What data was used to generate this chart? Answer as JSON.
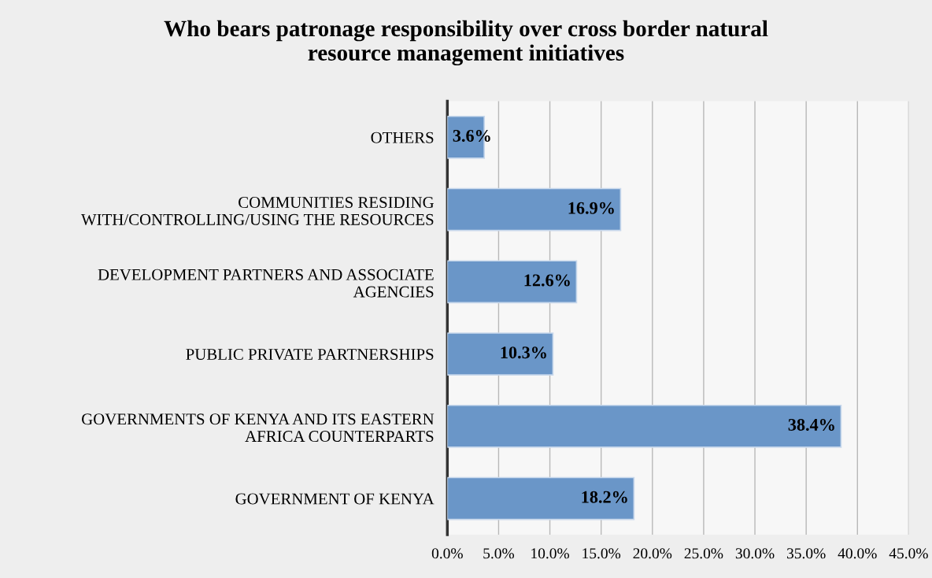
{
  "chart_data": {
    "type": "bar",
    "orientation": "horizontal",
    "title": "Who bears patronage responsibility over cross border natural\nresource management initiatives",
    "categories": [
      "OTHERS",
      "COMMUNITIES RESIDING\nWITH/CONTROLLING/USING THE RESOURCES",
      "DEVELOPMENT PARTNERS AND ASSOCIATE\nAGENCIES",
      "PUBLIC PRIVATE PARTNERSHIPS",
      "GOVERNMENTS OF KENYA AND ITS EASTERN\nAFRICA COUNTERPARTS",
      "GOVERNMENT OF KENYA"
    ],
    "values": [
      3.6,
      16.9,
      12.6,
      10.3,
      38.4,
      18.2
    ],
    "value_labels": [
      "3.6%",
      "16.9%",
      "12.6%",
      "10.3%",
      "38.4%",
      "18.2%"
    ],
    "color": "#6a96c8",
    "xlim": [
      0,
      45
    ],
    "xticks": [
      {
        "value": 0,
        "label": "0.0%"
      },
      {
        "value": 5,
        "label": "5.0%"
      },
      {
        "value": 10,
        "label": "10.0%"
      },
      {
        "value": 15,
        "label": "15.0%"
      },
      {
        "value": 20,
        "label": "20.0%"
      },
      {
        "value": 25,
        "label": "25.0%"
      },
      {
        "value": 30,
        "label": "30.0%"
      },
      {
        "value": 35,
        "label": "35.0%"
      },
      {
        "value": 40,
        "label": "40.0%"
      },
      {
        "value": 45,
        "label": "45.0%"
      }
    ],
    "grid": "x",
    "legend": false
  }
}
